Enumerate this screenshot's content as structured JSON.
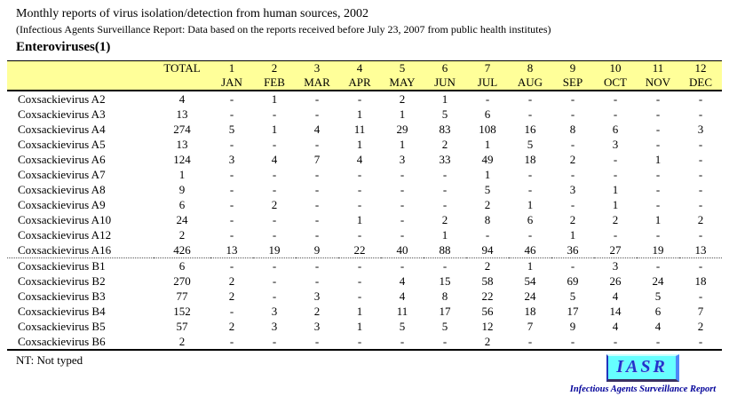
{
  "header": {
    "title": "Monthly reports of virus isolation/detection from human sources, 2002",
    "subtitle": "(Infectious Agents Surveillance Report: Data based on the reports received before July 23, 2007 from public health institutes)",
    "section_title": "Enteroviruses(1)"
  },
  "table": {
    "total_label": "TOTAL",
    "month_numbers": [
      "1",
      "2",
      "3",
      "4",
      "5",
      "6",
      "7",
      "8",
      "9",
      "10",
      "11",
      "12"
    ],
    "month_names": [
      "JAN",
      "FEB",
      "MAR",
      "APR",
      "MAY",
      "JUN",
      "JUL",
      "AUG",
      "SEP",
      "OCT",
      "NOV",
      "DEC"
    ],
    "rows": [
      {
        "name": "Coxsackievirus A2",
        "total": "4",
        "values": [
          "-",
          "1",
          "-",
          "-",
          "2",
          "1",
          "-",
          "-",
          "-",
          "-",
          "-",
          "-"
        ]
      },
      {
        "name": "Coxsackievirus A3",
        "total": "13",
        "values": [
          "-",
          "-",
          "-",
          "1",
          "1",
          "5",
          "6",
          "-",
          "-",
          "-",
          "-",
          "-"
        ]
      },
      {
        "name": "Coxsackievirus A4",
        "total": "274",
        "values": [
          "5",
          "1",
          "4",
          "11",
          "29",
          "83",
          "108",
          "16",
          "8",
          "6",
          "-",
          "3"
        ]
      },
      {
        "name": "Coxsackievirus A5",
        "total": "13",
        "values": [
          "-",
          "-",
          "-",
          "1",
          "1",
          "2",
          "1",
          "5",
          "-",
          "3",
          "-",
          "-"
        ]
      },
      {
        "name": "Coxsackievirus A6",
        "total": "124",
        "values": [
          "3",
          "4",
          "7",
          "4",
          "3",
          "33",
          "49",
          "18",
          "2",
          "-",
          "1",
          "-"
        ]
      },
      {
        "name": "Coxsackievirus A7",
        "total": "1",
        "values": [
          "-",
          "-",
          "-",
          "-",
          "-",
          "-",
          "1",
          "-",
          "-",
          "-",
          "-",
          "-"
        ]
      },
      {
        "name": "Coxsackievirus A8",
        "total": "9",
        "values": [
          "-",
          "-",
          "-",
          "-",
          "-",
          "-",
          "5",
          "-",
          "3",
          "1",
          "-",
          "-"
        ]
      },
      {
        "name": "Coxsackievirus A9",
        "total": "6",
        "values": [
          "-",
          "2",
          "-",
          "-",
          "-",
          "-",
          "2",
          "1",
          "-",
          "1",
          "-",
          "-"
        ]
      },
      {
        "name": "Coxsackievirus A10",
        "total": "24",
        "values": [
          "-",
          "-",
          "-",
          "1",
          "-",
          "2",
          "8",
          "6",
          "2",
          "2",
          "1",
          "2"
        ]
      },
      {
        "name": "Coxsackievirus A12",
        "total": "2",
        "values": [
          "-",
          "-",
          "-",
          "-",
          "-",
          "1",
          "-",
          "-",
          "1",
          "-",
          "-",
          "-"
        ]
      },
      {
        "name": "Coxsackievirus A16",
        "total": "426",
        "values": [
          "13",
          "19",
          "9",
          "22",
          "40",
          "88",
          "94",
          "46",
          "36",
          "27",
          "19",
          "13"
        ]
      },
      {
        "name": "Coxsackievirus B1",
        "total": "6",
        "values": [
          "-",
          "-",
          "-",
          "-",
          "-",
          "-",
          "2",
          "1",
          "-",
          "3",
          "-",
          "-"
        ],
        "divider": true
      },
      {
        "name": "Coxsackievirus B2",
        "total": "270",
        "values": [
          "2",
          "-",
          "-",
          "-",
          "4",
          "15",
          "58",
          "54",
          "69",
          "26",
          "24",
          "18"
        ]
      },
      {
        "name": "Coxsackievirus B3",
        "total": "77",
        "values": [
          "2",
          "-",
          "3",
          "-",
          "4",
          "8",
          "22",
          "24",
          "5",
          "4",
          "5",
          "-"
        ]
      },
      {
        "name": "Coxsackievirus B4",
        "total": "152",
        "values": [
          "-",
          "3",
          "2",
          "1",
          "11",
          "17",
          "56",
          "18",
          "17",
          "14",
          "6",
          "7"
        ]
      },
      {
        "name": "Coxsackievirus B5",
        "total": "57",
        "values": [
          "2",
          "3",
          "3",
          "1",
          "5",
          "5",
          "12",
          "7",
          "9",
          "4",
          "4",
          "2"
        ]
      },
      {
        "name": "Coxsackievirus B6",
        "total": "2",
        "values": [
          "-",
          "-",
          "-",
          "-",
          "-",
          "-",
          "2",
          "-",
          "-",
          "-",
          "-",
          "-"
        ]
      }
    ]
  },
  "footer": {
    "note": "NT: Not typed",
    "logo_text": "IASR",
    "logo_caption": "Infectious Agents Surveillance Report"
  },
  "colors": {
    "header_bg": "#FFFF99",
    "logo_bg": "#66FFFF",
    "logo_text": "#2233CC",
    "caption_text": "#000099"
  }
}
